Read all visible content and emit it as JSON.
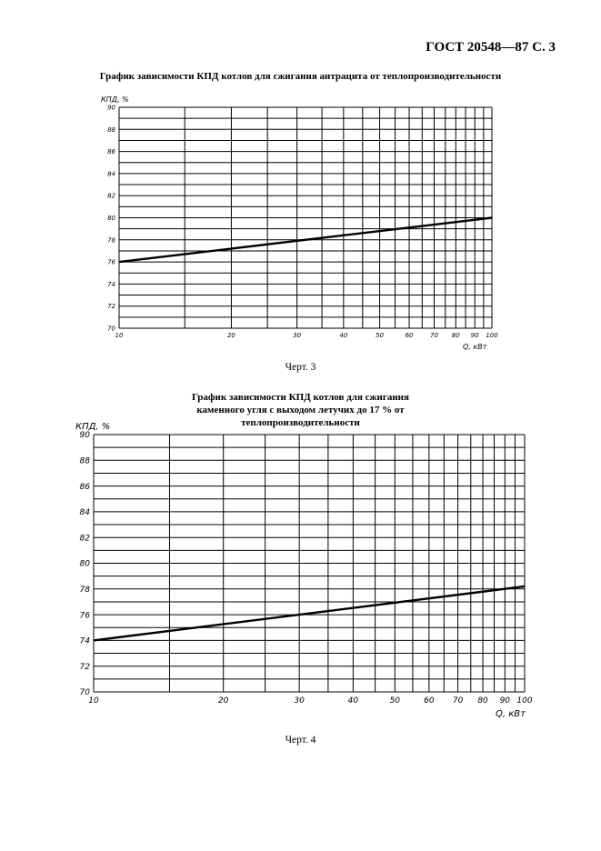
{
  "page": {
    "header": "ГОСТ 20548—87 С. 3",
    "captions": [
      "Черт. 3",
      "Черт. 4"
    ]
  },
  "chart_data": [
    {
      "type": "line",
      "title": "График зависимости КПД котлов для сжигания антрацита от теплопроизводительности",
      "ylabel": "КПД, %",
      "xlabel": "Q, кВт",
      "x_scale": "log",
      "xlim": [
        10,
        100
      ],
      "ylim": [
        70,
        90
      ],
      "x_ticks": [
        10,
        20,
        30,
        40,
        50,
        60,
        70,
        80,
        90,
        100
      ],
      "y_ticks": [
        70,
        72,
        74,
        76,
        78,
        80,
        82,
        84,
        86,
        88,
        90
      ],
      "grid": true,
      "series": [
        {
          "x": [
            10,
            100
          ],
          "values": [
            76,
            80
          ]
        }
      ],
      "caption": "Черт. 3"
    },
    {
      "type": "line",
      "title": "График зависимости КПД котлов для сжигания каменного угля с выходом летучих до 17 % от теплопроизводительности",
      "ylabel": "КПД, %",
      "xlabel": "Q, кВт",
      "x_scale": "log",
      "xlim": [
        10,
        100
      ],
      "ylim": [
        70,
        90
      ],
      "x_ticks": [
        10,
        20,
        30,
        40,
        50,
        60,
        70,
        80,
        90,
        100
      ],
      "y_ticks": [
        70,
        72,
        74,
        76,
        78,
        80,
        82,
        84,
        86,
        88,
        90
      ],
      "grid": true,
      "series": [
        {
          "x": [
            10,
            100
          ],
          "values": [
            74,
            78.2
          ]
        }
      ],
      "caption": "Черт. 4"
    }
  ]
}
